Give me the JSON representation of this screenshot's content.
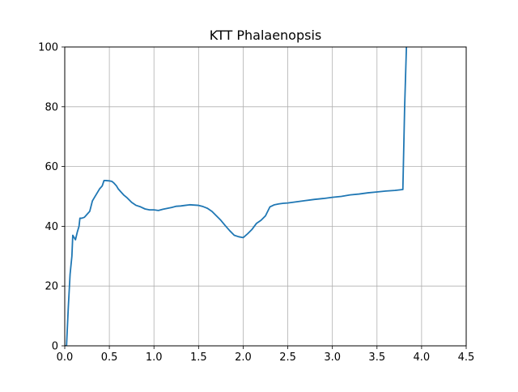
{
  "chart_data": {
    "type": "line",
    "title": "KTT Phalaenopsis",
    "xlabel": "",
    "ylabel": "",
    "xlim": [
      0,
      4.5
    ],
    "ylim": [
      0,
      100
    ],
    "xticks": [
      "0.0",
      "0.5",
      "1.0",
      "1.5",
      "2.0",
      "2.5",
      "3.0",
      "3.5",
      "4.0",
      "4.5"
    ],
    "yticks": [
      "0",
      "20",
      "40",
      "60",
      "80",
      "100"
    ],
    "xtick_values": [
      0,
      0.5,
      1.0,
      1.5,
      2.0,
      2.5,
      3.0,
      3.5,
      4.0,
      4.5
    ],
    "ytick_values": [
      0,
      20,
      40,
      60,
      80,
      100
    ],
    "grid": true,
    "line_color": "#1f77b4",
    "grid_color": "#b0b0b0",
    "series": [
      {
        "x": [
          0.0,
          0.02,
          0.04,
          0.06,
          0.08,
          0.09,
          0.11,
          0.12,
          0.14,
          0.16,
          0.17,
          0.19,
          0.22,
          0.25,
          0.28,
          0.31,
          0.33,
          0.36,
          0.39,
          0.42,
          0.44,
          0.46,
          0.5,
          0.53,
          0.55,
          0.58,
          0.6,
          0.63,
          0.66,
          0.7,
          0.75,
          0.8,
          0.85,
          0.9,
          0.95,
          1.0,
          1.05,
          1.1,
          1.15,
          1.2,
          1.25,
          1.3,
          1.35,
          1.4,
          1.45,
          1.5,
          1.55,
          1.6,
          1.65,
          1.7,
          1.75,
          1.8,
          1.85,
          1.9,
          1.95,
          2.0,
          2.05,
          2.1,
          2.15,
          2.2,
          2.25,
          2.3,
          2.35,
          2.4,
          2.45,
          2.5,
          2.6,
          2.7,
          2.8,
          2.9,
          3.0,
          3.1,
          3.2,
          3.3,
          3.4,
          3.5,
          3.6,
          3.7,
          3.79,
          3.81,
          3.83
        ],
        "y": [
          0,
          0,
          13,
          24,
          30,
          37,
          36,
          35.5,
          38,
          40,
          42.7,
          42.7,
          43,
          44,
          45,
          48.5,
          49.5,
          51,
          52.5,
          53.5,
          55.3,
          55.3,
          55.2,
          55,
          54.5,
          53.5,
          52.5,
          51.5,
          50.5,
          49.5,
          48,
          47,
          46.5,
          45.8,
          45.5,
          45.5,
          45.3,
          45.7,
          46,
          46.3,
          46.7,
          46.8,
          47,
          47.2,
          47.1,
          47,
          46.6,
          46,
          45,
          43.5,
          42,
          40.2,
          38.5,
          37,
          36.5,
          36.2,
          37.5,
          39,
          41,
          42,
          43.5,
          46.5,
          47.2,
          47.5,
          47.7,
          47.8,
          48.2,
          48.6,
          49,
          49.3,
          49.7,
          50,
          50.5,
          50.8,
          51.2,
          51.5,
          51.8,
          52,
          52.3,
          80,
          100
        ]
      }
    ]
  }
}
